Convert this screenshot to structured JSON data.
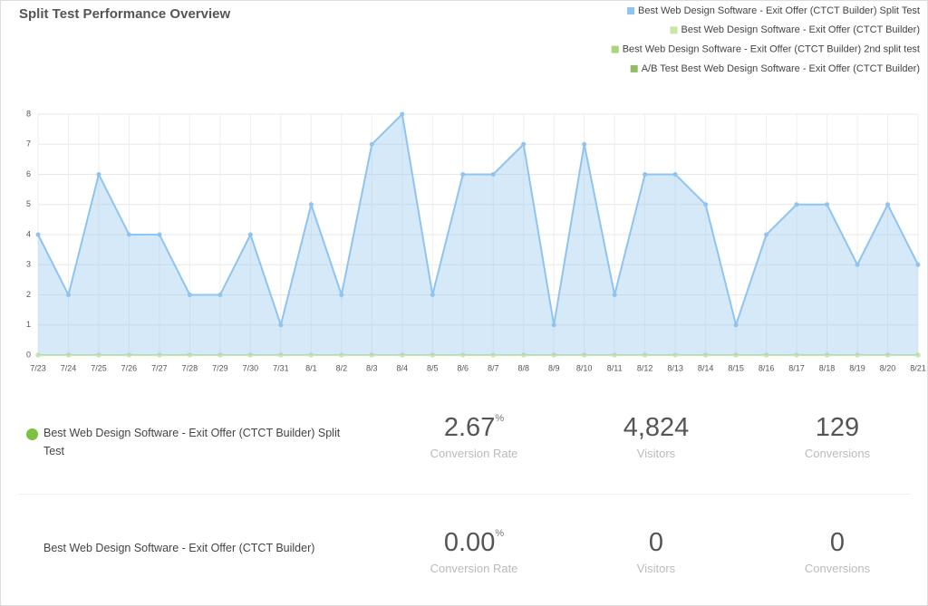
{
  "chart_data": {
    "type": "line",
    "title": "Split Test Performance Overview",
    "categories": [
      "7/23",
      "7/24",
      "7/25",
      "7/26",
      "7/27",
      "7/28",
      "7/29",
      "7/30",
      "7/31",
      "8/1",
      "8/2",
      "8/3",
      "8/4",
      "8/5",
      "8/6",
      "8/7",
      "8/8",
      "8/9",
      "8/10",
      "8/11",
      "8/12",
      "8/13",
      "8/14",
      "8/15",
      "8/16",
      "8/17",
      "8/18",
      "8/19",
      "8/20",
      "8/21"
    ],
    "series": [
      {
        "name": "Best Web Design Software - Exit Offer (CTCT Builder) Split Test",
        "color": "#90c4f0",
        "area": true,
        "values": [
          4,
          2,
          6,
          4,
          4,
          2,
          2,
          4,
          1,
          5,
          2,
          7,
          8,
          2,
          6,
          6,
          7,
          1,
          7,
          2,
          6,
          6,
          5,
          1,
          4,
          5,
          5,
          3,
          5,
          3
        ]
      },
      {
        "name": "Best Web Design Software - Exit Offer (CTCT Builder)",
        "color": "#c8e6a4",
        "area": false,
        "values": [
          0,
          0,
          0,
          0,
          0,
          0,
          0,
          0,
          0,
          0,
          0,
          0,
          0,
          0,
          0,
          0,
          0,
          0,
          0,
          0,
          0,
          0,
          0,
          0,
          0,
          0,
          0,
          0,
          0,
          0
        ]
      },
      {
        "name": "Best Web Design Software - Exit Offer (CTCT Builder) 2nd split test",
        "color": "#a8d47c",
        "area": false,
        "values": [
          0,
          0,
          0,
          0,
          0,
          0,
          0,
          0,
          0,
          0,
          0,
          0,
          0,
          0,
          0,
          0,
          0,
          0,
          0,
          0,
          0,
          0,
          0,
          0,
          0,
          0,
          0,
          0,
          0,
          0
        ]
      },
      {
        "name": "A/B Test Best Web Design Software - Exit Offer (CTCT Builder)",
        "color": "#8fbe68",
        "area": false,
        "values": [
          0,
          0,
          0,
          0,
          0,
          0,
          0,
          0,
          0,
          0,
          0,
          0,
          0,
          0,
          0,
          0,
          0,
          0,
          0,
          0,
          0,
          0,
          0,
          0,
          0,
          0,
          0,
          0,
          0,
          0
        ]
      }
    ],
    "ylim": [
      0,
      8
    ],
    "yticks": [
      0,
      1,
      2,
      3,
      4,
      5,
      6,
      7,
      8
    ],
    "grid": true,
    "legend_position": "top-right"
  },
  "results": {
    "rows": [
      {
        "name": "Best Web Design Software - Exit Offer (CTCT Builder) Split Test",
        "winner": true,
        "stats": [
          {
            "value": "2.67",
            "unit": "%",
            "label": "Conversion Rate"
          },
          {
            "value": "4,824",
            "label": "Visitors"
          },
          {
            "value": "129",
            "label": "Conversions"
          }
        ]
      },
      {
        "name": "Best Web Design Software - Exit Offer (CTCT Builder)",
        "winner": false,
        "stats": [
          {
            "value": "0.00",
            "unit": "%",
            "label": "Conversion Rate"
          },
          {
            "value": "0",
            "label": "Visitors"
          },
          {
            "value": "0",
            "label": "Conversions"
          }
        ]
      }
    ]
  }
}
